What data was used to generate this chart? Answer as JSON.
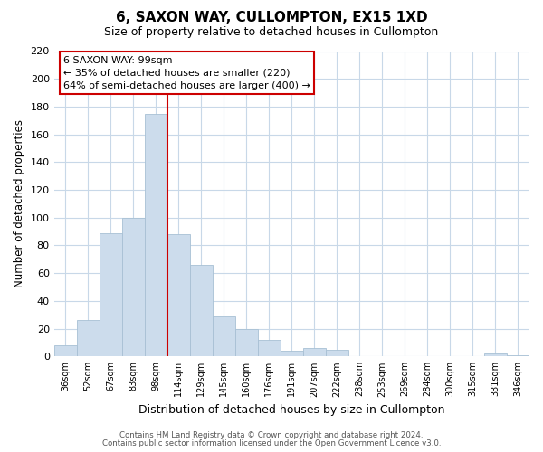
{
  "title": "6, SAXON WAY, CULLOMPTON, EX15 1XD",
  "subtitle": "Size of property relative to detached houses in Cullompton",
  "xlabel": "Distribution of detached houses by size in Cullompton",
  "ylabel": "Number of detached properties",
  "bar_color": "#ccdcec",
  "bar_edge_color": "#a8c0d4",
  "grid_color": "#c8d8e8",
  "vline_color": "#cc0000",
  "categories": [
    "36sqm",
    "52sqm",
    "67sqm",
    "83sqm",
    "98sqm",
    "114sqm",
    "129sqm",
    "145sqm",
    "160sqm",
    "176sqm",
    "191sqm",
    "207sqm",
    "222sqm",
    "238sqm",
    "253sqm",
    "269sqm",
    "284sqm",
    "300sqm",
    "315sqm",
    "331sqm",
    "346sqm"
  ],
  "values": [
    8,
    26,
    89,
    100,
    175,
    88,
    66,
    29,
    20,
    12,
    4,
    6,
    5,
    0,
    0,
    0,
    0,
    0,
    0,
    2,
    1
  ],
  "ylim": [
    0,
    220
  ],
  "yticks": [
    0,
    20,
    40,
    60,
    80,
    100,
    120,
    140,
    160,
    180,
    200,
    220
  ],
  "vline_x_index": 4.5,
  "annotation_title": "6 SAXON WAY: 99sqm",
  "annotation_line1": "← 35% of detached houses are smaller (220)",
  "annotation_line2": "64% of semi-detached houses are larger (400) →",
  "annotation_box_color": "#ffffff",
  "annotation_box_edge_color": "#cc0000",
  "footer1": "Contains HM Land Registry data © Crown copyright and database right 2024.",
  "footer2": "Contains public sector information licensed under the Open Government Licence v3.0.",
  "background_color": "#ffffff",
  "figsize": [
    6.0,
    5.0
  ],
  "dpi": 100
}
